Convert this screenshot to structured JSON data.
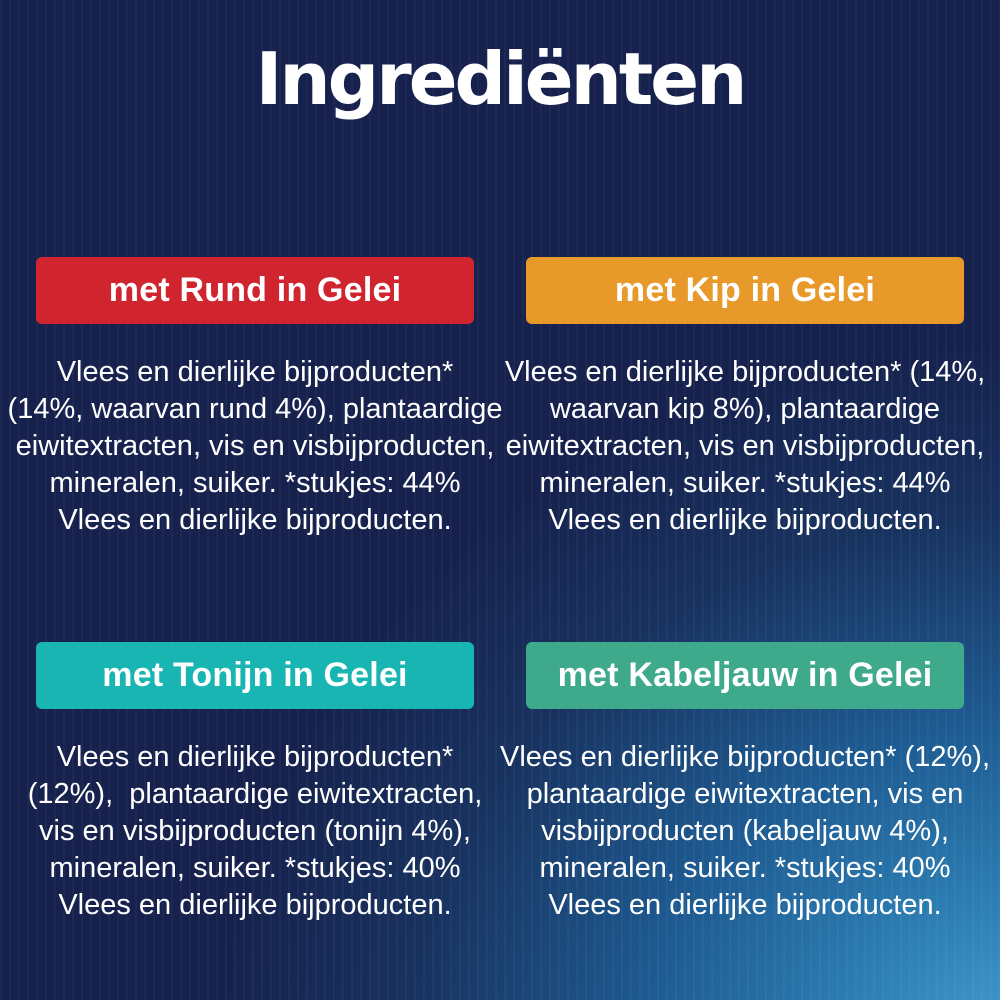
{
  "title": "Ingrediënten",
  "colors": {
    "background_navy": "#16214d",
    "background_light_blue": "#2d7fb4",
    "text_white": "#ffffff",
    "banner_red": "#d0252f",
    "banner_orange": "#e7992a",
    "banner_teal": "#18b5b2",
    "banner_green": "#3fa98b"
  },
  "cards": [
    {
      "banner_label": "met Rund in Gelei",
      "banner_color": "#d0252f",
      "lines": [
        "Vlees en dierlijke bijproducten*",
        "(14%, waarvan rund 4%), plantaardige",
        "eiwitextracten, vis en visbijproducten,",
        "mineralen, suiker. *stukjes: 44%",
        "Vlees en dierlijke bijproducten."
      ]
    },
    {
      "banner_label": "met Kip in Gelei",
      "banner_color": "#e7992a",
      "lines": [
        "Vlees en dierlijke bijproducten* (14%,",
        "waarvan kip 8%), plantaardige",
        "eiwitextracten, vis en visbijproducten,",
        "mineralen, suiker. *stukjes: 44%",
        "Vlees en dierlijke bijproducten."
      ]
    },
    {
      "banner_label": "met Tonijn in Gelei",
      "banner_color": "#18b5b2",
      "lines": [
        "Vlees en dierlijke bijproducten*",
        "(12%),  plantaardige eiwitextracten,",
        "vis en visbijproducten (tonijn 4%),",
        "mineralen, suiker. *stukjes: 40%",
        "Vlees en dierlijke bijproducten."
      ]
    },
    {
      "banner_label": "met Kabeljauw in Gelei",
      "banner_color": "#3fa98b",
      "lines": [
        "Vlees en dierlijke bijproducten* (12%),",
        "plantaardige eiwitextracten, vis en",
        "visbijproducten (kabeljauw 4%),",
        "mineralen, suiker. *stukjes: 40%",
        "Vlees en dierlijke bijproducten."
      ]
    }
  ]
}
